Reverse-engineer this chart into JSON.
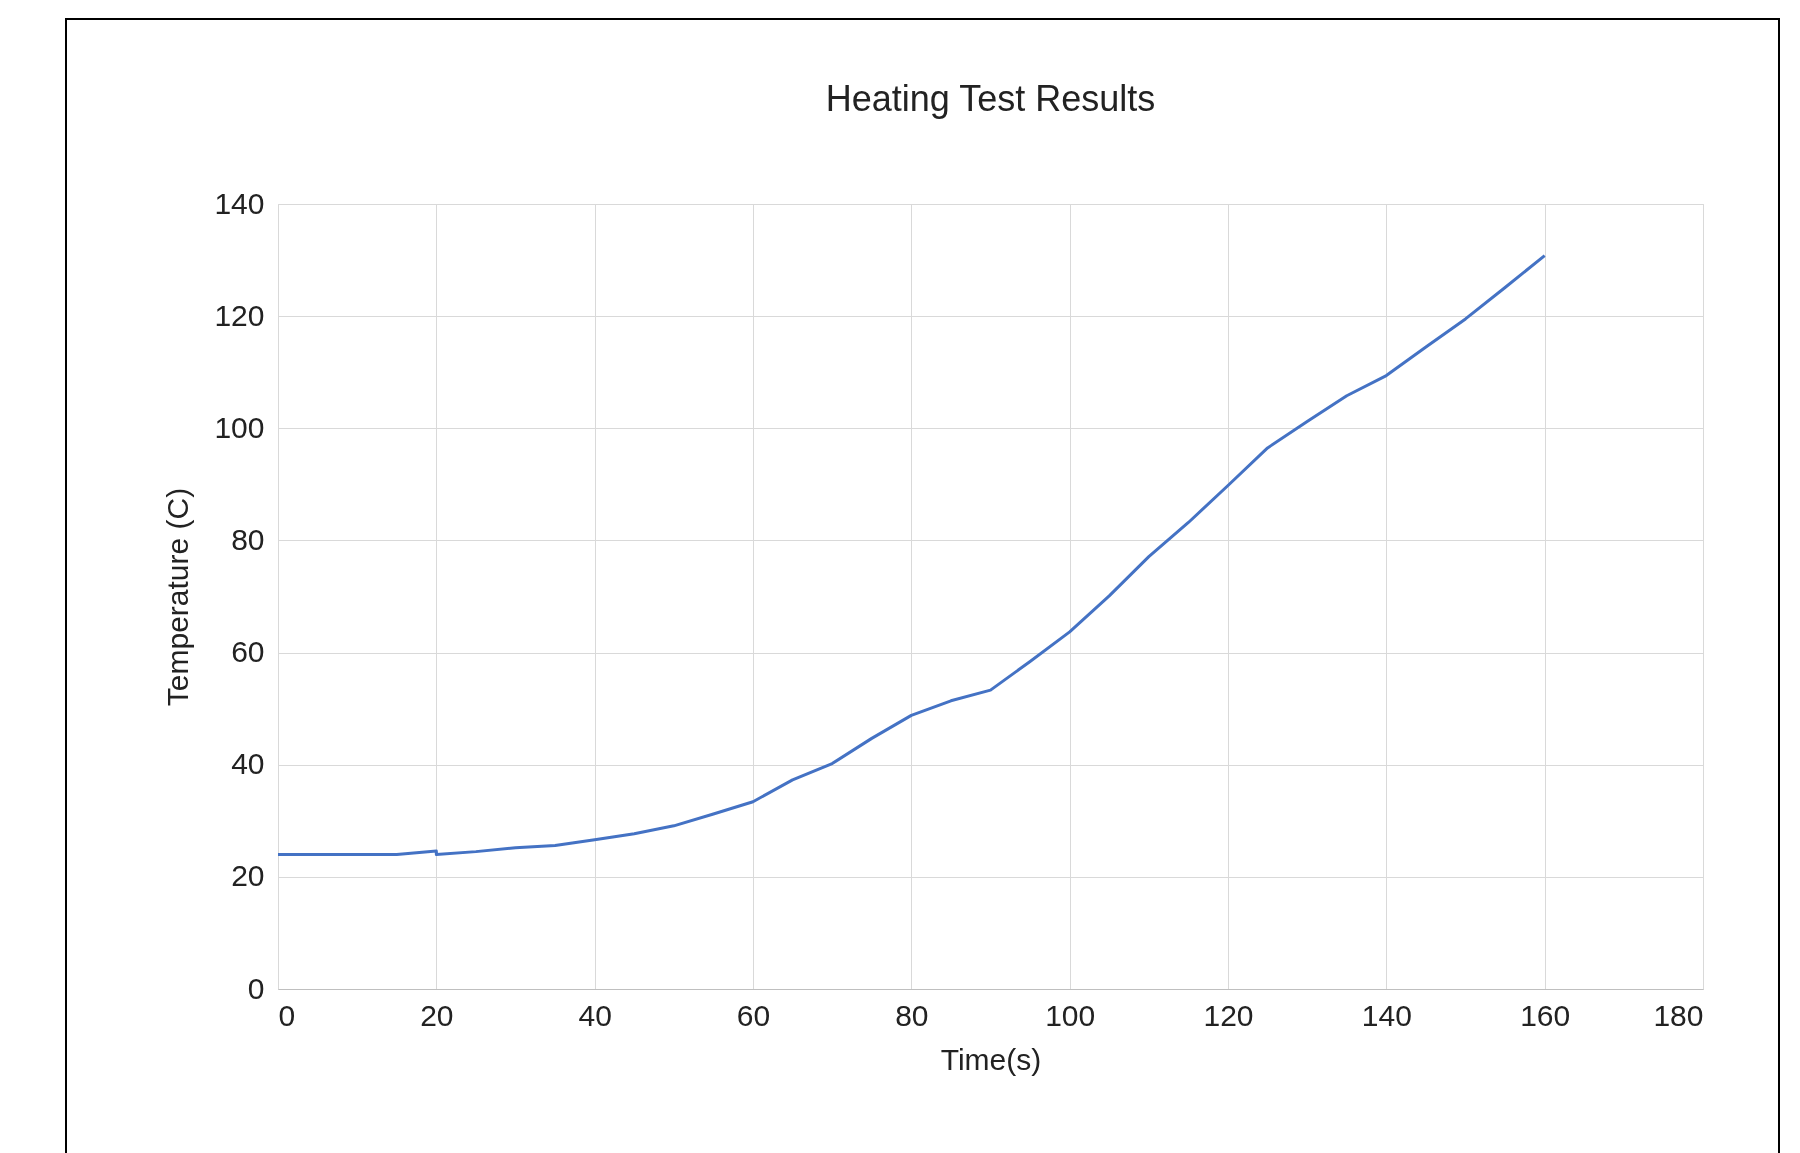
{
  "chart_data": {
    "type": "line",
    "title": "Heating Test Results",
    "xlabel": "Time(s)",
    "ylabel": "Temperature (C)",
    "x": [
      0,
      5,
      10,
      15,
      20,
      20,
      25,
      30,
      35,
      40,
      45,
      50,
      55,
      60,
      65,
      70,
      75,
      80,
      85,
      90,
      95,
      100,
      105,
      110,
      115,
      120,
      125,
      130,
      135,
      140,
      145,
      150,
      155,
      160
    ],
    "series": [
      {
        "color": "#4472c4",
        "values": [
          24,
          24,
          24,
          24,
          24.6,
          24,
          24.5,
          25.2,
          25.6,
          26.6,
          27.7,
          29.1,
          31.2,
          33.4,
          37.3,
          40.2,
          44.7,
          48.8,
          51.4,
          53.3,
          58.4,
          63.7,
          70.1,
          77.1,
          83.2,
          89.8,
          96.5,
          101.2,
          105.8,
          109.4,
          114.5,
          119.5,
          125.1,
          130.8
        ]
      }
    ],
    "xlim": [
      0,
      180
    ],
    "xticks": [
      0,
      20,
      40,
      60,
      80,
      100,
      120,
      140,
      160,
      180
    ],
    "ylim": [
      0,
      140
    ],
    "yticks": [
      0,
      20,
      40,
      60,
      80,
      100,
      120,
      140
    ],
    "grid": true,
    "legend": false,
    "marker": "none",
    "line_style": "solid"
  }
}
